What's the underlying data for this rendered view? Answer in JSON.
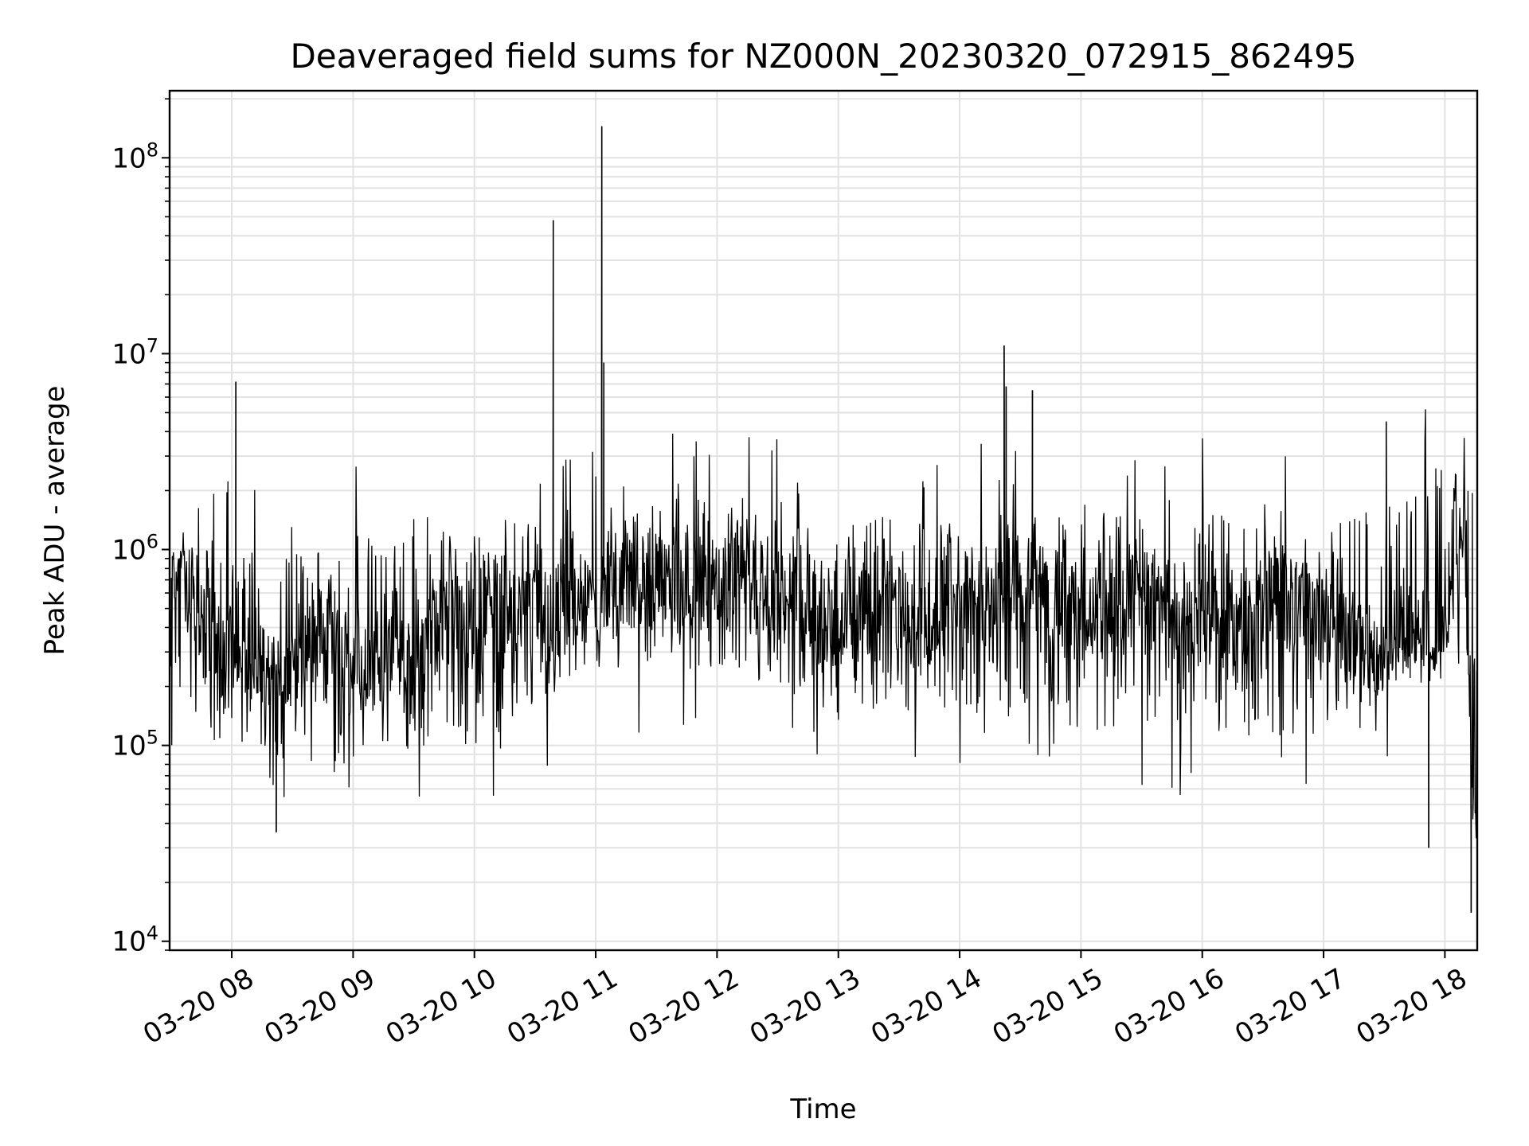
{
  "chart_data": {
    "type": "line",
    "title": "Deaveraged field sums for NZ000N_20230320_072915_862495",
    "xlabel": "Time",
    "ylabel": "Peak ADU - average",
    "yscale": "log",
    "ylim": [
      9000,
      220000000
    ],
    "xlim": [
      "2023-03-20 07:29:15",
      "2023-03-20 18:16:00"
    ],
    "x_ticks": [
      "2023-03-20 08:00",
      "2023-03-20 09:00",
      "2023-03-20 10:00",
      "2023-03-20 11:00",
      "2023-03-20 12:00",
      "2023-03-20 13:00",
      "2023-03-20 14:00",
      "2023-03-20 15:00",
      "2023-03-20 16:00",
      "2023-03-20 17:00",
      "2023-03-20 18:00"
    ],
    "x_tick_labels": [
      "03-20 08",
      "03-20 09",
      "03-20 10",
      "03-20 11",
      "03-20 12",
      "03-20 13",
      "03-20 14",
      "03-20 15",
      "03-20 16",
      "03-20 17",
      "03-20 18"
    ],
    "y_ticks": [
      10000,
      100000,
      1000000,
      10000000,
      100000000
    ],
    "y_tick_labels": [
      {
        "base": "10",
        "exp": "4"
      },
      {
        "base": "10",
        "exp": "5"
      },
      {
        "base": "10",
        "exp": "6"
      },
      {
        "base": "10",
        "exp": "7"
      },
      {
        "base": "10",
        "exp": "8"
      }
    ],
    "grid": true,
    "series": [
      {
        "color": "#000000",
        "x": [
          "2023-03-20 07:29",
          "2023-03-20 07:35",
          "2023-03-20 07:45",
          "2023-03-20 07:55",
          "2023-03-20 08:02",
          "2023-03-20 08:10",
          "2023-03-20 08:20",
          "2023-03-20 08:30",
          "2023-03-20 08:40",
          "2023-03-20 08:50",
          "2023-03-20 09:00",
          "2023-03-20 09:10",
          "2023-03-20 09:20",
          "2023-03-20 09:30",
          "2023-03-20 09:40",
          "2023-03-20 09:50",
          "2023-03-20 10:00",
          "2023-03-20 10:10",
          "2023-03-20 10:20",
          "2023-03-20 10:30",
          "2023-03-20 10:39",
          "2023-03-20 10:45",
          "2023-03-20 10:55",
          "2023-03-20 11:03",
          "2023-03-20 11:10",
          "2023-03-20 11:20",
          "2023-03-20 11:30",
          "2023-03-20 11:40",
          "2023-03-20 11:50",
          "2023-03-20 12:00",
          "2023-03-20 12:10",
          "2023-03-20 12:20",
          "2023-03-20 12:30",
          "2023-03-20 12:40",
          "2023-03-20 12:50",
          "2023-03-20 13:00",
          "2023-03-20 13:10",
          "2023-03-20 13:20",
          "2023-03-20 13:30",
          "2023-03-20 13:40",
          "2023-03-20 13:50",
          "2023-03-20 14:00",
          "2023-03-20 14:10",
          "2023-03-20 14:22",
          "2023-03-20 14:30",
          "2023-03-20 14:36",
          "2023-03-20 14:45",
          "2023-03-20 14:55",
          "2023-03-20 15:05",
          "2023-03-20 15:15",
          "2023-03-20 15:25",
          "2023-03-20 15:35",
          "2023-03-20 15:45",
          "2023-03-20 15:55",
          "2023-03-20 16:05",
          "2023-03-20 16:15",
          "2023-03-20 16:25",
          "2023-03-20 16:35",
          "2023-03-20 16:45",
          "2023-03-20 16:55",
          "2023-03-20 17:05",
          "2023-03-20 17:15",
          "2023-03-20 17:25",
          "2023-03-20 17:31",
          "2023-03-20 17:40",
          "2023-03-20 17:50",
          "2023-03-20 18:00",
          "2023-03-20 18:05",
          "2023-03-20 18:10",
          "2023-03-20 18:13",
          "2023-03-20 18:16"
        ],
        "y": [
          600000,
          900000,
          400000,
          300000,
          350000,
          300000,
          250000,
          300000,
          400000,
          300000,
          250000,
          280000,
          300000,
          250000,
          400000,
          500000,
          500000,
          600000,
          550000,
          500000,
          480000,
          500000,
          550000,
          600000,
          700000,
          700000,
          700000,
          650000,
          650000,
          700000,
          650000,
          650000,
          600000,
          550000,
          500000,
          500000,
          450000,
          450000,
          450000,
          400000,
          450000,
          500000,
          600000,
          550000,
          700000,
          700000,
          600000,
          500000,
          450000,
          500000,
          550000,
          600000,
          500000,
          450000,
          500000,
          400000,
          500000,
          600000,
          500000,
          450000,
          400000,
          350000,
          300000,
          350000,
          400000,
          350000,
          300000,
          1500000,
          1200000,
          50000,
          60000
        ],
        "spikes": [
          {
            "x": "2023-03-20 08:02",
            "y": 7200000
          },
          {
            "x": "2023-03-20 10:39",
            "y": 48000000
          },
          {
            "x": "2023-03-20 11:03",
            "y": 145000000
          },
          {
            "x": "2023-03-20 11:04",
            "y": 9000000
          },
          {
            "x": "2023-03-20 14:22",
            "y": 11000000
          },
          {
            "x": "2023-03-20 14:23",
            "y": 6800000
          },
          {
            "x": "2023-03-20 14:36",
            "y": 6500000
          },
          {
            "x": "2023-03-20 17:31",
            "y": 4500000
          },
          {
            "x": "2023-03-20 08:22",
            "y": 36000
          },
          {
            "x": "2023-03-20 17:52",
            "y": 30000
          },
          {
            "x": "2023-03-20 18:13",
            "y": 14000
          }
        ],
        "low_envelope": [
          {
            "x": "2023-03-20 08:00",
            "y": 90000
          },
          {
            "x": "2023-03-20 09:00",
            "y": 80000
          },
          {
            "x": "2023-03-20 10:00",
            "y": 100000
          },
          {
            "x": "2023-03-20 11:00",
            "y": 250000
          },
          {
            "x": "2023-03-20 12:00",
            "y": 250000
          },
          {
            "x": "2023-03-20 13:00",
            "y": 150000
          },
          {
            "x": "2023-03-20 14:00",
            "y": 150000
          },
          {
            "x": "2023-03-20 15:00",
            "y": 120000
          },
          {
            "x": "2023-03-20 16:00",
            "y": 120000
          },
          {
            "x": "2023-03-20 17:00",
            "y": 100000
          },
          {
            "x": "2023-03-20 18:00",
            "y": 300000
          }
        ],
        "high_envelope": [
          {
            "x": "2023-03-20 08:00",
            "y": 1000000
          },
          {
            "x": "2023-03-20 09:00",
            "y": 1200000
          },
          {
            "x": "2023-03-20 10:00",
            "y": 1300000
          },
          {
            "x": "2023-03-20 11:00",
            "y": 1500000
          },
          {
            "x": "2023-03-20 12:00",
            "y": 2000000
          },
          {
            "x": "2023-03-20 13:00",
            "y": 1500000
          },
          {
            "x": "2023-03-20 14:00",
            "y": 1500000
          },
          {
            "x": "2023-03-20 15:00",
            "y": 1800000
          },
          {
            "x": "2023-03-20 16:00",
            "y": 1800000
          },
          {
            "x": "2023-03-20 17:00",
            "y": 1200000
          },
          {
            "x": "2023-03-20 18:00",
            "y": 3200000
          }
        ]
      }
    ]
  }
}
